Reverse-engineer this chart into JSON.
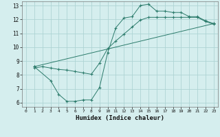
{
  "xlabel": "Humidex (Indice chaleur)",
  "bg_color": "#d5eeee",
  "line_color": "#2a7a6a",
  "grid_color": "#aed4d4",
  "xlim": [
    -0.5,
    23.5
  ],
  "ylim": [
    5.7,
    13.3
  ],
  "xticks": [
    0,
    1,
    2,
    3,
    4,
    5,
    6,
    7,
    8,
    9,
    10,
    11,
    12,
    13,
    14,
    15,
    16,
    17,
    18,
    19,
    20,
    21,
    22,
    23
  ],
  "yticks": [
    6,
    7,
    8,
    9,
    10,
    11,
    12,
    13
  ],
  "line1_x": [
    1,
    2,
    3,
    4,
    5,
    6,
    7,
    8,
    9,
    10,
    11,
    12,
    13,
    14,
    15,
    16,
    17,
    18,
    19,
    20,
    21,
    22,
    23
  ],
  "line1_y": [
    8.5,
    8.6,
    8.5,
    8.4,
    8.35,
    8.25,
    8.15,
    8.05,
    8.85,
    9.9,
    10.45,
    10.95,
    11.45,
    11.95,
    12.15,
    12.15,
    12.15,
    12.15,
    12.15,
    12.15,
    12.15,
    11.85,
    11.65
  ],
  "line2_x": [
    1,
    3,
    4,
    5,
    6,
    7,
    8,
    9,
    10,
    11,
    12,
    13,
    14,
    15,
    16,
    17,
    18,
    19,
    20,
    21,
    22,
    23
  ],
  "line2_y": [
    8.6,
    7.6,
    6.6,
    6.1,
    6.1,
    6.2,
    6.2,
    7.1,
    9.6,
    11.4,
    12.1,
    12.2,
    13.0,
    13.1,
    12.6,
    12.6,
    12.5,
    12.5,
    12.2,
    12.2,
    11.9,
    11.7
  ],
  "line3_x": [
    1,
    23
  ],
  "line3_y": [
    8.6,
    11.7
  ]
}
